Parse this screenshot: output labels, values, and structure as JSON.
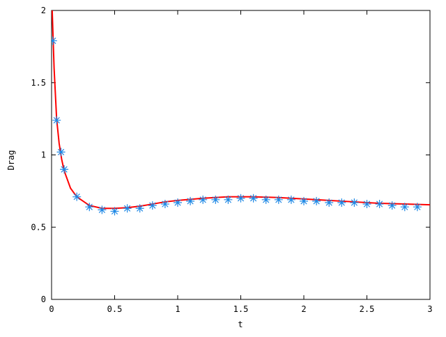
{
  "chart_data": {
    "type": "line",
    "xlabel": "t",
    "ylabel": "Drag",
    "xlim": [
      0,
      3
    ],
    "ylim": [
      0,
      2
    ],
    "xticks": [
      0,
      0.5,
      1,
      1.5,
      2,
      2.5,
      3
    ],
    "yticks": [
      0,
      0.5,
      1,
      1.5,
      2
    ],
    "grid": false,
    "series": [
      {
        "style": "line",
        "color": "#ff0000",
        "x": [
          0.005,
          0.02,
          0.04,
          0.06,
          0.08,
          0.1,
          0.15,
          0.2,
          0.3,
          0.4,
          0.5,
          0.6,
          0.7,
          0.8,
          0.9,
          1.0,
          1.2,
          1.4,
          1.6,
          1.8,
          2.0,
          2.2,
          2.4,
          2.6,
          2.8,
          3.0
        ],
        "values": [
          2.0,
          1.6,
          1.25,
          1.08,
          0.97,
          0.89,
          0.77,
          0.71,
          0.65,
          0.63,
          0.63,
          0.635,
          0.645,
          0.66,
          0.675,
          0.685,
          0.7,
          0.71,
          0.71,
          0.705,
          0.695,
          0.685,
          0.675,
          0.665,
          0.66,
          0.655
        ]
      },
      {
        "style": "points",
        "color": "#1e88e5",
        "x": [
          0.01,
          0.04,
          0.075,
          0.1,
          0.2,
          0.3,
          0.4,
          0.5,
          0.6,
          0.7,
          0.8,
          0.9,
          1.0,
          1.1,
          1.2,
          1.3,
          1.4,
          1.5,
          1.6,
          1.7,
          1.8,
          1.9,
          2.0,
          2.1,
          2.2,
          2.3,
          2.4,
          2.5,
          2.6,
          2.7,
          2.8,
          2.9
        ],
        "values": [
          1.79,
          1.24,
          1.02,
          0.9,
          0.71,
          0.64,
          0.62,
          0.61,
          0.63,
          0.63,
          0.65,
          0.66,
          0.67,
          0.68,
          0.69,
          0.69,
          0.69,
          0.7,
          0.7,
          0.69,
          0.69,
          0.69,
          0.68,
          0.68,
          0.67,
          0.67,
          0.67,
          0.66,
          0.66,
          0.65,
          0.64,
          0.64
        ]
      }
    ]
  }
}
